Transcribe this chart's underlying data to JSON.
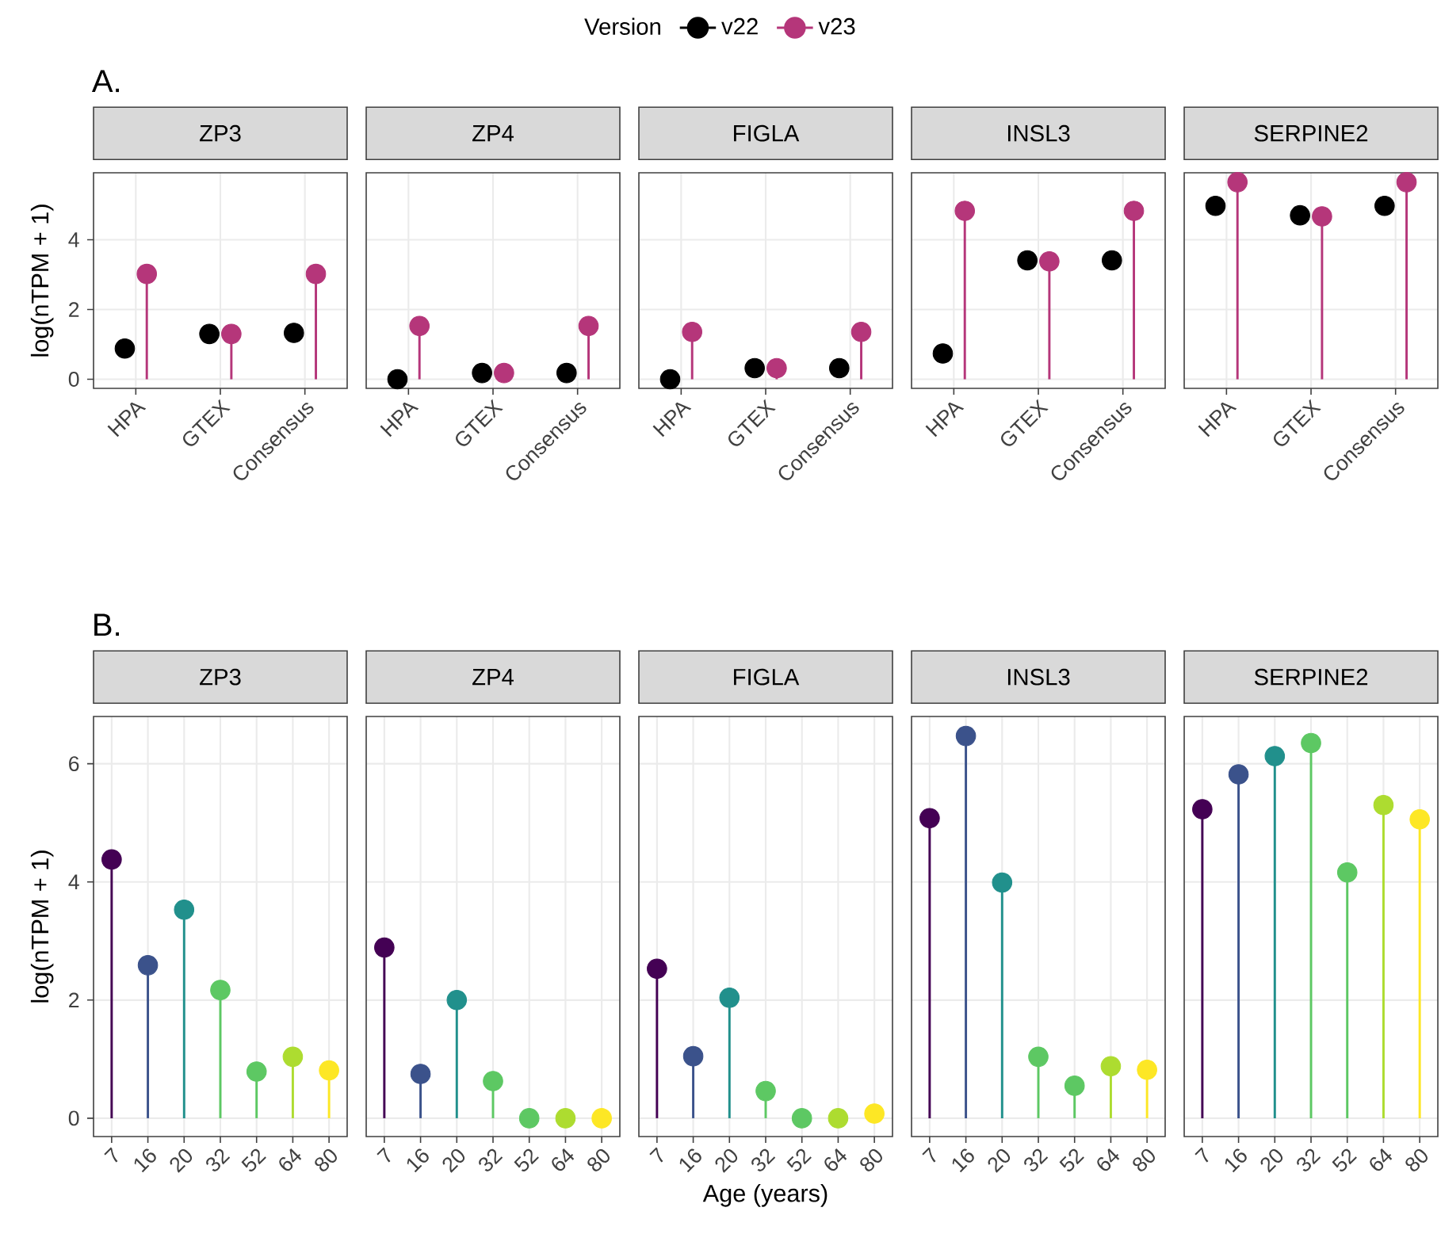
{
  "chart_data": [
    {
      "type": "lollipop",
      "title": "ZP3",
      "ylabel": "log(nTPM + 1)",
      "annotations": [
        "A."
      ],
      "legend": "top",
      "legend_title": "Version",
      "marker": "circle",
      "grid": true,
      "categories": [
        "HPA",
        "GTEX",
        "Consensus"
      ],
      "ylim": [
        -0.26,
        5.92
      ],
      "yticks": [
        0,
        2,
        4
      ],
      "series": [
        {
          "name": "v22",
          "type": "scatter",
          "color": "#000000",
          "values": [
            0.88,
            1.3,
            1.33
          ]
        },
        {
          "name": "v23",
          "type": "lollipop",
          "color": "#b5367a",
          "values": [
            3.02,
            1.3,
            3.02
          ]
        }
      ]
    },
    {
      "type": "lollipop",
      "title": "ZP4",
      "tick_labels": "x",
      "marker": "circle",
      "grid": true,
      "categories": [
        "HPA",
        "GTEX",
        "Consensus"
      ],
      "ylim": [
        -0.26,
        5.92
      ],
      "yticks": [
        0,
        2,
        4
      ],
      "series": [
        {
          "type": "scatter",
          "color": "#000000",
          "values": [
            0.0,
            0.18,
            0.18
          ]
        },
        {
          "type": "lollipop",
          "color": "#b5367a",
          "values": [
            1.53,
            0.18,
            1.53
          ]
        }
      ]
    },
    {
      "type": "lollipop",
      "title": "FIGLA",
      "tick_labels": "x",
      "marker": "circle",
      "grid": true,
      "categories": [
        "HPA",
        "GTEX",
        "Consensus"
      ],
      "ylim": [
        -0.26,
        5.92
      ],
      "yticks": [
        0,
        2,
        4
      ],
      "series": [
        {
          "type": "scatter",
          "color": "#000000",
          "values": [
            0.0,
            0.32,
            0.32
          ]
        },
        {
          "type": "lollipop",
          "color": "#b5367a",
          "values": [
            1.36,
            0.32,
            1.36
          ]
        }
      ]
    },
    {
      "type": "lollipop",
      "title": "INSL3",
      "tick_labels": "x",
      "marker": "circle",
      "grid": true,
      "categories": [
        "HPA",
        "GTEX",
        "Consensus"
      ],
      "ylim": [
        -0.26,
        5.92
      ],
      "yticks": [
        0,
        2,
        4
      ],
      "series": [
        {
          "type": "scatter",
          "color": "#000000",
          "values": [
            0.74,
            3.41,
            3.41
          ]
        },
        {
          "type": "lollipop",
          "color": "#b5367a",
          "values": [
            4.83,
            3.38,
            4.83
          ]
        }
      ]
    },
    {
      "type": "lollipop",
      "title": "SERPINE2",
      "tick_labels": "x",
      "marker": "circle",
      "grid": true,
      "categories": [
        "HPA",
        "GTEX",
        "Consensus"
      ],
      "ylim": [
        -0.26,
        5.92
      ],
      "yticks": [
        0,
        2,
        4
      ],
      "series": [
        {
          "type": "scatter",
          "color": "#000000",
          "values": [
            4.97,
            4.7,
            4.97
          ]
        },
        {
          "type": "lollipop",
          "color": "#b5367a",
          "values": [
            5.65,
            4.67,
            5.65
          ]
        }
      ]
    },
    {
      "type": "lollipop",
      "title": "ZP3",
      "ylabel": "log(nTPM + 1)",
      "annotations": [
        "B."
      ],
      "marker": "circle",
      "grid": true,
      "categories": [
        "7",
        "16",
        "20",
        "32",
        "52",
        "64",
        "80"
      ],
      "ylim": [
        -0.31,
        6.8
      ],
      "yticks": [
        0,
        2,
        4,
        6
      ],
      "series": [
        {
          "colors": [
            "#440154",
            "#3b528b",
            "#21908c",
            "#5dc863",
            "#5dc863",
            "#addc30",
            "#fde725"
          ],
          "values": [
            4.38,
            2.59,
            3.53,
            2.17,
            0.79,
            1.04,
            0.81
          ]
        }
      ]
    },
    {
      "type": "lollipop",
      "title": "ZP4",
      "tick_labels": "x",
      "marker": "circle",
      "grid": true,
      "categories": [
        "7",
        "16",
        "20",
        "32",
        "52",
        "64",
        "80"
      ],
      "ylim": [
        -0.31,
        6.8
      ],
      "yticks": [
        0,
        2,
        4,
        6
      ],
      "series": [
        {
          "colors": [
            "#440154",
            "#3b528b",
            "#21908c",
            "#5dc863",
            "#5dc863",
            "#addc30",
            "#fde725"
          ],
          "values": [
            2.89,
            0.75,
            2.0,
            0.63,
            0.0,
            0.0,
            0.0
          ]
        }
      ]
    },
    {
      "type": "lollipop",
      "title": "FIGLA",
      "xlabel": "Age (years)",
      "tick_labels": "x",
      "marker": "circle",
      "grid": true,
      "categories": [
        "7",
        "16",
        "20",
        "32",
        "52",
        "64",
        "80"
      ],
      "ylim": [
        -0.31,
        6.8
      ],
      "yticks": [
        0,
        2,
        4,
        6
      ],
      "series": [
        {
          "colors": [
            "#440154",
            "#3b528b",
            "#21908c",
            "#5dc863",
            "#5dc863",
            "#addc30",
            "#fde725"
          ],
          "values": [
            2.53,
            1.05,
            2.04,
            0.46,
            0.0,
            0.0,
            0.08
          ]
        }
      ]
    },
    {
      "type": "lollipop",
      "title": "INSL3",
      "tick_labels": "x",
      "marker": "circle",
      "grid": true,
      "categories": [
        "7",
        "16",
        "20",
        "32",
        "52",
        "64",
        "80"
      ],
      "ylim": [
        -0.31,
        6.8
      ],
      "yticks": [
        0,
        2,
        4,
        6
      ],
      "series": [
        {
          "colors": [
            "#440154",
            "#3b528b",
            "#21908c",
            "#5dc863",
            "#5dc863",
            "#addc30",
            "#fde725"
          ],
          "values": [
            5.08,
            6.47,
            3.99,
            1.04,
            0.55,
            0.88,
            0.82
          ]
        }
      ]
    },
    {
      "type": "lollipop",
      "title": "SERPINE2",
      "tick_labels": "x",
      "marker": "circle",
      "grid": true,
      "categories": [
        "7",
        "16",
        "20",
        "32",
        "52",
        "64",
        "80"
      ],
      "ylim": [
        -0.31,
        6.8
      ],
      "yticks": [
        0,
        2,
        4,
        6
      ],
      "series": [
        {
          "colors": [
            "#440154",
            "#3b528b",
            "#21908c",
            "#5dc863",
            "#5dc863",
            "#addc30",
            "#fde725"
          ],
          "values": [
            5.23,
            5.82,
            6.13,
            6.35,
            4.16,
            5.3,
            5.06
          ]
        }
      ]
    }
  ]
}
